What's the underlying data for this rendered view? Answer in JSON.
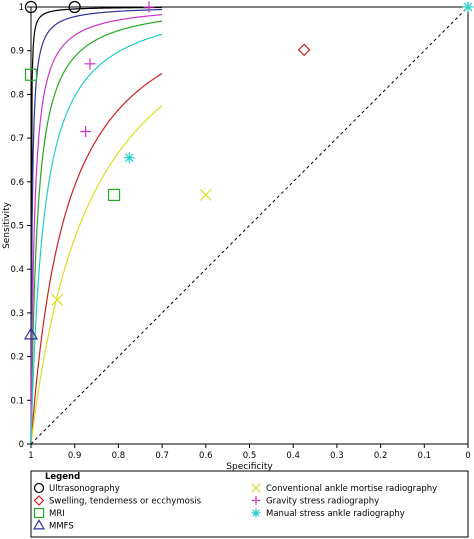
{
  "chart_data": {
    "type": "scatter",
    "title": "",
    "xlabel": "Specificity",
    "ylabel": "Sensitivity",
    "xlim": [
      1,
      0
    ],
    "ylim": [
      0,
      1
    ],
    "x_reversed": true,
    "grid": false,
    "diagonal_reference": true,
    "x_ticks": [
      1,
      0.9,
      0.8,
      0.7,
      0.6,
      0.5,
      0.4,
      0.3,
      0.2,
      0.1,
      0
    ],
    "x_tick_labels": [
      "1",
      "0.9",
      "0.8",
      "0.7",
      "0.6",
      "0.5",
      "0.4",
      "0.3",
      "0.2",
      "0.1",
      "0"
    ],
    "y_ticks": [
      0,
      0.1,
      0.2,
      0.3,
      0.4,
      0.5,
      0.6,
      0.7,
      0.8,
      0.9,
      1
    ],
    "y_tick_labels": [
      "0",
      "0.1",
      "0.2",
      "0.3",
      "0.4",
      "0.5",
      "0.6",
      "0.7",
      "0.8",
      "0.9",
      "1"
    ],
    "legend_title": "Legend",
    "legend_position": "bottom",
    "series": [
      {
        "name": "Ultrasonography",
        "marker": "circle",
        "color": "#000000",
        "points": [
          [
            1.0,
            1.0
          ],
          [
            0.9,
            1.0
          ]
        ],
        "curve": {
          "x_from": 1.0,
          "x_to": 0.7,
          "dor": 2000
        }
      },
      {
        "name": "Swelling, tenderness or ecchymosis",
        "marker": "diamond",
        "color": "#cc2222",
        "points": [
          [
            0.375,
            0.902
          ]
        ],
        "curve": {
          "x_from": 1.0,
          "x_to": 0.7,
          "dor": 13
        }
      },
      {
        "name": "MRI",
        "marker": "square",
        "color": "#22aa22",
        "points": [
          [
            1.0,
            0.845
          ],
          [
            0.81,
            0.57
          ]
        ],
        "curve": {
          "x_from": 1.0,
          "x_to": 0.7,
          "dor": 70
        }
      },
      {
        "name": "MMFS",
        "marker": "triangle",
        "color": "#333399",
        "points": [
          [
            1.0,
            0.25
          ]
        ],
        "curve": {
          "x_from": 1.0,
          "x_to": 0.7,
          "dor": 400
        }
      },
      {
        "name": "Conventional ankle mortise radiography",
        "marker": "x",
        "color": "#dddd22",
        "points": [
          [
            0.94,
            0.33
          ],
          [
            0.6,
            0.57
          ]
        ],
        "curve": {
          "x_from": 1.0,
          "x_to": 0.7,
          "dor": 8
        }
      },
      {
        "name": "Gravity stress radiography",
        "marker": "plus",
        "color": "#cc33cc",
        "points": [
          [
            0.865,
            0.87
          ],
          [
            0.875,
            0.715
          ],
          [
            0.73,
            1.0
          ]
        ],
        "curve": {
          "x_from": 1.0,
          "x_to": 0.7,
          "dor": 130
        }
      },
      {
        "name": "Manual stress ankle radiography",
        "marker": "asterisk",
        "color": "#22cccc",
        "points": [
          [
            0.775,
            0.655
          ],
          [
            0.0,
            1.0
          ]
        ],
        "curve": {
          "x_from": 1.0,
          "x_to": 0.7,
          "dor": 35
        }
      }
    ]
  }
}
